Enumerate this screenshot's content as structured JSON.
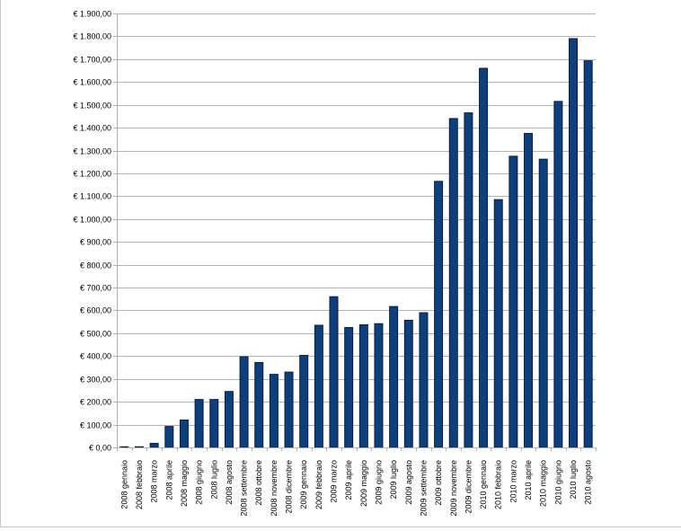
{
  "chart_data": {
    "type": "bar",
    "categories": [
      "2008 gennaio",
      "2008 febbraio",
      "2008 marzo",
      "2008 aprile",
      "2008 maggio",
      "2008 giugno",
      "2008 luglio",
      "2008 agosto",
      "2008 settembre",
      "2008 ottobre",
      "2008 novembre",
      "2008 dicembre",
      "2009 gennaio",
      "2009 febbraio",
      "2009 marzo",
      "2009 aprile",
      "2009 maggio",
      "2009 giugno",
      "2009 luglio",
      "2009 agosto",
      "2009 settembre",
      "2009 ottobre",
      "2009 novembre",
      "2009 dicembre",
      "2010 gennaio",
      "2010 febbraio",
      "2010 marzo",
      "2010 aprile",
      "2010 maggio",
      "2010 giugno",
      "2010 luglio",
      "2010 agosto"
    ],
    "values": [
      3,
      3,
      18,
      92,
      120,
      210,
      210,
      245,
      397,
      372,
      320,
      330,
      403,
      535,
      660,
      525,
      537,
      542,
      617,
      557,
      590,
      1165,
      1440,
      1465,
      1660,
      1085,
      1275,
      1375,
      1262,
      1515,
      1790,
      1693
    ],
    "y_ticks": [
      "€ 0,00",
      "€ 100,00",
      "€ 200,00",
      "€ 300,00",
      "€ 400,00",
      "€ 500,00",
      "€ 600,00",
      "€ 700,00",
      "€ 800,00",
      "€ 900,00",
      "€ 1.000,00",
      "€ 1.100,00",
      "€ 1.200,00",
      "€ 1.300,00",
      "€ 1.400,00",
      "€ 1.500,00",
      "€ 1.600,00",
      "€ 1.700,00",
      "€ 1.800,00",
      "€ 1.900,00"
    ],
    "ylim": [
      0,
      1900
    ],
    "y_step": 100,
    "grid": true,
    "legend": "none",
    "title": "",
    "xlabel": "",
    "ylabel": "",
    "colors": {
      "bar": "#0d3f7d",
      "grid": "#b3b3b3"
    }
  }
}
